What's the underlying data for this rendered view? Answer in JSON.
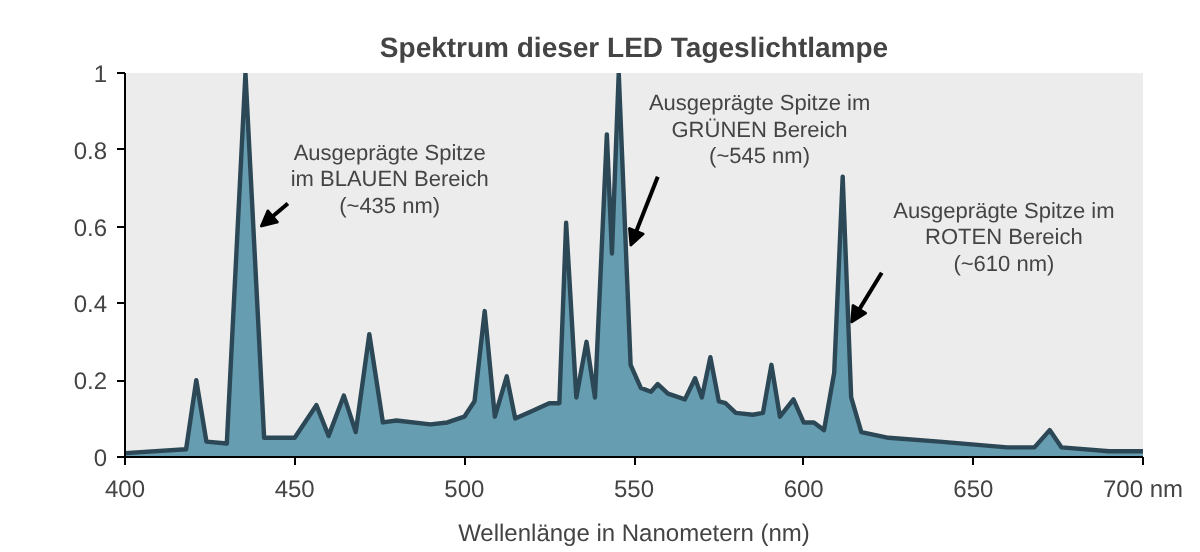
{
  "chart_data": {
    "type": "area",
    "title": "Spektrum dieser LED Tageslichtlampe",
    "xlabel": "Wellenlänge in Nanometern (nm)",
    "xlim": [
      400,
      700
    ],
    "ylim": [
      0,
      1
    ],
    "xticks": [
      400,
      450,
      500,
      550,
      600,
      650,
      {
        "value": 700,
        "label": "700 nm"
      }
    ],
    "yticks": [
      0,
      0.2,
      0.4,
      0.6,
      0.8,
      1
    ],
    "grid": false,
    "series": [
      {
        "color": "#4f8fa6",
        "x": [
          400,
          418,
          421,
          424,
          430,
          435.5,
          441,
          450,
          456.4,
          460,
          464.5,
          468,
          472,
          476,
          480,
          490,
          495,
          500,
          503,
          506,
          509,
          512.5,
          515,
          520,
          525,
          528,
          530,
          533,
          536,
          538.5,
          542,
          543.5,
          545.5,
          549,
          552,
          555,
          557,
          560,
          565,
          568,
          570,
          572.5,
          575,
          577,
          580,
          585,
          588,
          590.5,
          593,
          597,
          600,
          603,
          606,
          609,
          611.5,
          614,
          617,
          625,
          640,
          660,
          668,
          672.5,
          676,
          690,
          700
        ],
        "values": [
          0.01,
          0.02,
          0.2,
          0.04,
          0.035,
          1.0,
          0.05,
          0.05,
          0.135,
          0.055,
          0.16,
          0.065,
          0.32,
          0.09,
          0.095,
          0.085,
          0.09,
          0.105,
          0.145,
          0.38,
          0.105,
          0.21,
          0.1,
          0.12,
          0.14,
          0.14,
          0.61,
          0.155,
          0.3,
          0.155,
          0.84,
          0.53,
          1.0,
          0.24,
          0.18,
          0.17,
          0.19,
          0.165,
          0.15,
          0.205,
          0.155,
          0.26,
          0.145,
          0.14,
          0.115,
          0.11,
          0.115,
          0.24,
          0.105,
          0.15,
          0.09,
          0.09,
          0.07,
          0.22,
          0.73,
          0.155,
          0.065,
          0.05,
          0.04,
          0.025,
          0.025,
          0.07,
          0.025,
          0.015,
          0.015
        ]
      }
    ],
    "annotations": [
      {
        "text": "Ausgeprägte Spitze\nim BLAUEN Bereich\n(~435 nm)",
        "x": 440,
        "y": 0.6
      },
      {
        "text": "Ausgeprägte Spitze im\nGRÜNEN Bereich\n(~545 nm)",
        "x": 549,
        "y": 0.55
      },
      {
        "text": "Ausgeprägte Spitze im\nROTEN Bereich\n(~610 nm)",
        "x": 614,
        "y": 0.35
      }
    ]
  }
}
